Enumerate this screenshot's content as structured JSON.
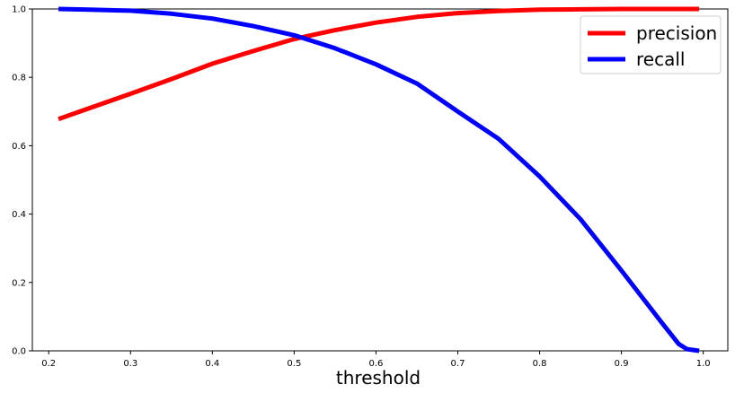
{
  "chart_data": {
    "type": "line",
    "title": "",
    "xlabel": "threshold",
    "ylabel": "",
    "xlim": [
      0.18,
      1.03
    ],
    "ylim": [
      0.0,
      1.0
    ],
    "x_ticks": [
      "0.2",
      "0.3",
      "0.4",
      "0.5",
      "0.6",
      "0.7",
      "0.8",
      "0.9",
      "1.0"
    ],
    "y_ticks": [
      "0.0",
      "0.2",
      "0.4",
      "0.6",
      "0.8",
      "1.0"
    ],
    "grid": false,
    "legend_position": "top-right",
    "series": [
      {
        "name": "precision",
        "color": "#ff0000",
        "points": [
          [
            0.212,
            0.678
          ],
          [
            0.25,
            0.71
          ],
          [
            0.3,
            0.752
          ],
          [
            0.35,
            0.795
          ],
          [
            0.4,
            0.84
          ],
          [
            0.45,
            0.877
          ],
          [
            0.5,
            0.912
          ],
          [
            0.55,
            0.938
          ],
          [
            0.6,
            0.96
          ],
          [
            0.65,
            0.977
          ],
          [
            0.7,
            0.988
          ],
          [
            0.75,
            0.994
          ],
          [
            0.8,
            0.998
          ],
          [
            0.85,
            0.999
          ],
          [
            0.9,
            1.0
          ],
          [
            0.95,
            1.0
          ],
          [
            0.995,
            1.0
          ]
        ]
      },
      {
        "name": "recall",
        "color": "#0000ff",
        "points": [
          [
            0.212,
            1.0
          ],
          [
            0.25,
            0.998
          ],
          [
            0.3,
            0.995
          ],
          [
            0.35,
            0.986
          ],
          [
            0.4,
            0.972
          ],
          [
            0.45,
            0.95
          ],
          [
            0.5,
            0.923
          ],
          [
            0.55,
            0.885
          ],
          [
            0.6,
            0.838
          ],
          [
            0.65,
            0.782
          ],
          [
            0.7,
            0.7
          ],
          [
            0.75,
            0.62
          ],
          [
            0.8,
            0.51
          ],
          [
            0.85,
            0.385
          ],
          [
            0.9,
            0.235
          ],
          [
            0.95,
            0.08
          ],
          [
            0.97,
            0.02
          ],
          [
            0.98,
            0.005
          ],
          [
            0.995,
            0.0
          ]
        ]
      }
    ]
  }
}
